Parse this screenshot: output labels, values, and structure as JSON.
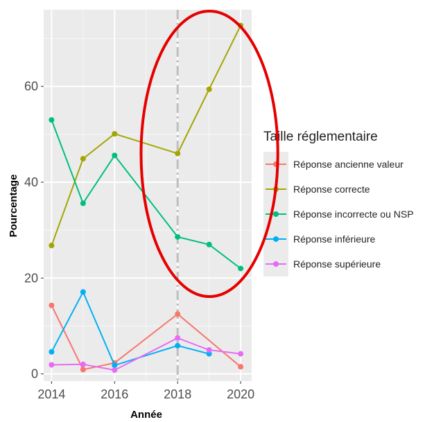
{
  "chart_data": {
    "type": "line",
    "xlabel": "Année",
    "ylabel": "Pourcentage",
    "xlim": [
      2013.75,
      2020.35
    ],
    "ylim": [
      -1.5,
      76
    ],
    "x_ticks": [
      2014,
      2016,
      2018,
      2020
    ],
    "y_ticks": [
      0,
      20,
      40,
      60
    ],
    "grid": true,
    "legend": {
      "title": "Taille réglementaire",
      "placement": "right"
    },
    "vline": {
      "x": 2018,
      "style": "dashed",
      "color": "#bebebe"
    },
    "annotation": {
      "shape": "ellipse",
      "color": "#e60000",
      "around_x": [
        2017.5,
        2020.3
      ]
    },
    "series": [
      {
        "name": "Réponse ancienne valeur",
        "color": "#F8766D",
        "points": [
          [
            2014,
            14.3
          ],
          [
            2015,
            0.9
          ],
          [
            2016,
            2.3
          ],
          [
            2018,
            12.5
          ],
          [
            2020,
            1.5
          ]
        ]
      },
      {
        "name": "Réponse correcte",
        "color": "#A3A500",
        "points": [
          [
            2014,
            26.8
          ],
          [
            2015,
            44.9
          ],
          [
            2016,
            50.1
          ],
          [
            2018,
            46.0
          ],
          [
            2019,
            59.4
          ],
          [
            2020,
            72.7
          ]
        ]
      },
      {
        "name": "Réponse incorrecte ou NSP",
        "color": "#00BF7D",
        "points": [
          [
            2014,
            53.0
          ],
          [
            2015,
            35.6
          ],
          [
            2016,
            45.6
          ],
          [
            2018,
            28.6
          ],
          [
            2019,
            27.0
          ],
          [
            2020,
            22.0
          ]
        ]
      },
      {
        "name": "Réponse inférieure",
        "color": "#00B0F6",
        "points": [
          [
            2014,
            4.6
          ],
          [
            2015,
            17.1
          ],
          [
            2016,
            1.8
          ],
          [
            2018,
            5.9
          ],
          [
            2019,
            4.2
          ]
        ]
      },
      {
        "name": "Réponse supérieure",
        "color": "#E76BF3",
        "points": [
          [
            2014,
            1.9
          ],
          [
            2015,
            2.0
          ],
          [
            2016,
            0.8
          ],
          [
            2018,
            7.5
          ],
          [
            2019,
            5.0
          ],
          [
            2020,
            4.2
          ]
        ]
      }
    ]
  }
}
